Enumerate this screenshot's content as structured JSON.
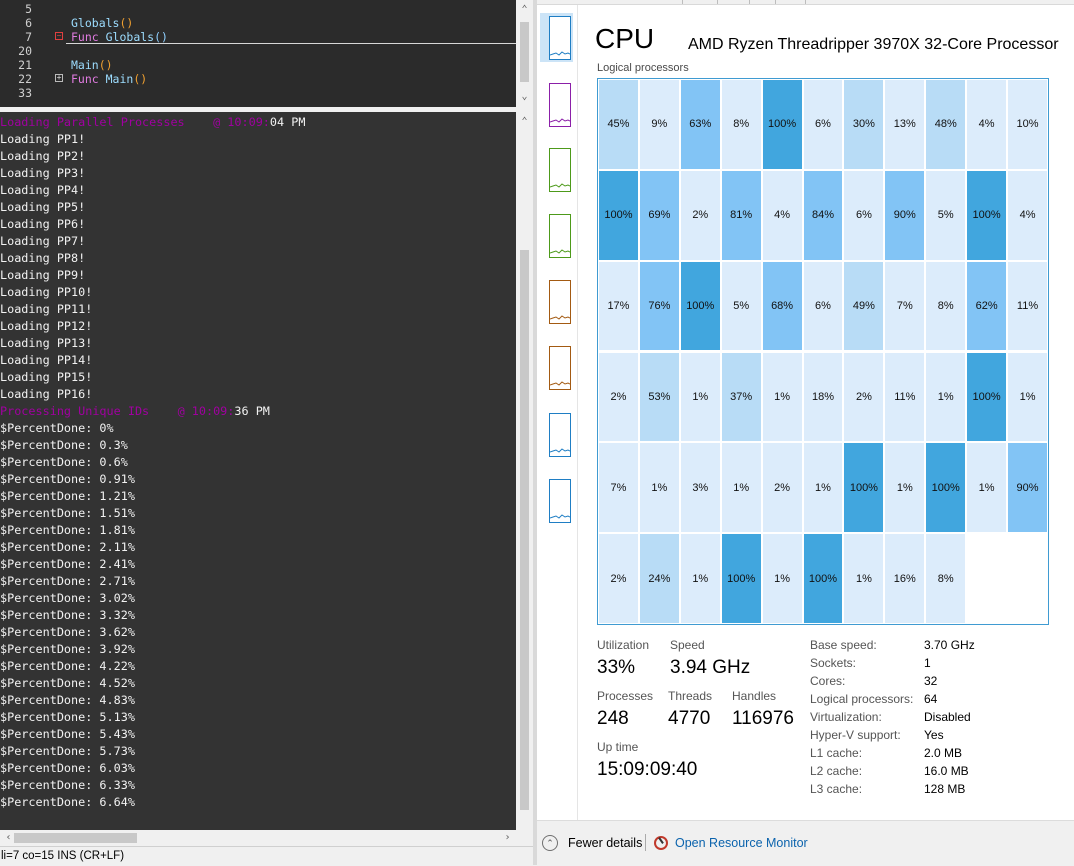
{
  "editor": {
    "lines": [
      {
        "num": "5",
        "fold": "",
        "code": []
      },
      {
        "num": "6",
        "fold": "",
        "code": [
          {
            "t": "Globals",
            "c": "c-fn"
          },
          {
            "t": "()",
            "c": "c-br"
          }
        ]
      },
      {
        "num": "7",
        "fold": "minus-red",
        "code": [
          {
            "t": "Func ",
            "c": "c-kw"
          },
          {
            "t": "Globals",
            "c": "c-fn"
          },
          {
            "t": "()",
            "c": "c-br2"
          }
        ]
      },
      {
        "num": "20",
        "fold": "",
        "code": []
      },
      {
        "num": "21",
        "fold": "",
        "code": [
          {
            "t": "Main",
            "c": "c-fn"
          },
          {
            "t": "()",
            "c": "c-br"
          }
        ]
      },
      {
        "num": "22",
        "fold": "plus",
        "code": [
          {
            "t": "Func ",
            "c": "c-kw"
          },
          {
            "t": "Main",
            "c": "c-fn"
          },
          {
            "t": "()",
            "c": "c-br"
          }
        ]
      },
      {
        "num": "33",
        "fold": "",
        "code": []
      }
    ]
  },
  "console": {
    "lines": [
      {
        "text": "Loading Parallel Processes",
        "suffix_hidden": "    @ 10:09:",
        "tail": "04 PM",
        "purple": true
      },
      {
        "text": "Loading PP1!"
      },
      {
        "text": "Loading PP2!"
      },
      {
        "text": "Loading PP3!"
      },
      {
        "text": "Loading PP4!"
      },
      {
        "text": "Loading PP5!"
      },
      {
        "text": "Loading PP6!"
      },
      {
        "text": "Loading PP7!"
      },
      {
        "text": "Loading PP8!"
      },
      {
        "text": "Loading PP9!"
      },
      {
        "text": "Loading PP10!"
      },
      {
        "text": "Loading PP11!"
      },
      {
        "text": "Loading PP12!"
      },
      {
        "text": "Loading PP13!"
      },
      {
        "text": "Loading PP14!"
      },
      {
        "text": "Loading PP15!"
      },
      {
        "text": "Loading PP16!"
      },
      {
        "text": "Processing Unique IDs",
        "suffix_hidden": "    @ 10:09:",
        "tail": "36 PM",
        "purple": true
      },
      {
        "text": "$PercentDone: 0%"
      },
      {
        "text": "$PercentDone: 0.3%"
      },
      {
        "text": "$PercentDone: 0.6%"
      },
      {
        "text": "$PercentDone: 0.91%"
      },
      {
        "text": "$PercentDone: 1.21%"
      },
      {
        "text": "$PercentDone: 1.51%"
      },
      {
        "text": "$PercentDone: 1.81%"
      },
      {
        "text": "$PercentDone: 2.11%"
      },
      {
        "text": "$PercentDone: 2.41%"
      },
      {
        "text": "$PercentDone: 2.71%"
      },
      {
        "text": "$PercentDone: 3.02%"
      },
      {
        "text": "$PercentDone: 3.32%"
      },
      {
        "text": "$PercentDone: 3.62%"
      },
      {
        "text": "$PercentDone: 3.92%"
      },
      {
        "text": "$PercentDone: 4.22%"
      },
      {
        "text": "$PercentDone: 4.52%"
      },
      {
        "text": "$PercentDone: 4.83%"
      },
      {
        "text": "$PercentDone: 5.13%"
      },
      {
        "text": "$PercentDone: 5.43%"
      },
      {
        "text": "$PercentDone: 5.73%"
      },
      {
        "text": "$PercentDone: 6.03%"
      },
      {
        "text": "$PercentDone: 6.33%"
      },
      {
        "text": "$PercentDone: 6.64%"
      }
    ]
  },
  "statusbar": {
    "text": "li=7 co=15 INS (CR+LF)"
  },
  "taskmgr": {
    "title": "CPU",
    "cpu_name": "AMD Ryzen Threadripper 3970X 32-Core Processor",
    "lp_label": "Logical processors",
    "grid_columns": 11,
    "processor_loads": [
      45,
      9,
      63,
      8,
      100,
      6,
      30,
      13,
      48,
      4,
      10,
      100,
      69,
      2,
      81,
      4,
      84,
      6,
      90,
      5,
      100,
      4,
      17,
      76,
      100,
      5,
      68,
      6,
      49,
      7,
      8,
      62,
      11,
      2,
      53,
      1,
      37,
      1,
      18,
      2,
      11,
      1,
      100,
      1,
      7,
      1,
      3,
      1,
      2,
      1,
      100,
      1,
      100,
      1,
      90,
      2,
      24,
      1,
      100,
      1,
      100,
      1,
      16,
      8
    ],
    "load_colors": {
      "low": "#dcecfb",
      "mid": "#b8dcf6",
      "high": "#82c4f5",
      "full": "#41a6de"
    },
    "metrics": {
      "utilization_label": "Utilization",
      "utilization": "33%",
      "speed_label": "Speed",
      "speed": "3.94 GHz",
      "processes_label": "Processes",
      "processes": "248",
      "threads_label": "Threads",
      "threads": "4770",
      "handles_label": "Handles",
      "handles": "116976",
      "uptime_label": "Up time",
      "uptime": "15:09:09:40"
    },
    "specs": [
      {
        "label": "Base speed:",
        "value": "3.70 GHz"
      },
      {
        "label": "Sockets:",
        "value": "1"
      },
      {
        "label": "Cores:",
        "value": "32"
      },
      {
        "label": "Logical processors:",
        "value": "64"
      },
      {
        "label": "Virtualization:",
        "value": "Disabled"
      },
      {
        "label": "Hyper-V support:",
        "value": "Yes"
      },
      {
        "label": "L1 cache:",
        "value": "2.0 MB"
      },
      {
        "label": "L2 cache:",
        "value": "16.0 MB"
      },
      {
        "label": "L3 cache:",
        "value": "128 MB"
      }
    ],
    "sidebar_graphs": [
      {
        "name": "cpu-graph",
        "color": "#1f7ec4",
        "selected": true
      },
      {
        "name": "memory-graph",
        "color": "#8b1fa8"
      },
      {
        "name": "disk-0-graph",
        "color": "#4d9a1a"
      },
      {
        "name": "disk-1-graph",
        "color": "#4d9a1a"
      },
      {
        "name": "ethernet-0-graph",
        "color": "#a35a12"
      },
      {
        "name": "ethernet-1-graph",
        "color": "#a35a12"
      },
      {
        "name": "gpu-0-graph",
        "color": "#1f7ec4"
      },
      {
        "name": "gpu-1-graph",
        "color": "#1f7ec4"
      }
    ],
    "footer": {
      "fewer_details": "Fewer details",
      "open_resource_monitor": "Open Resource Monitor"
    }
  }
}
